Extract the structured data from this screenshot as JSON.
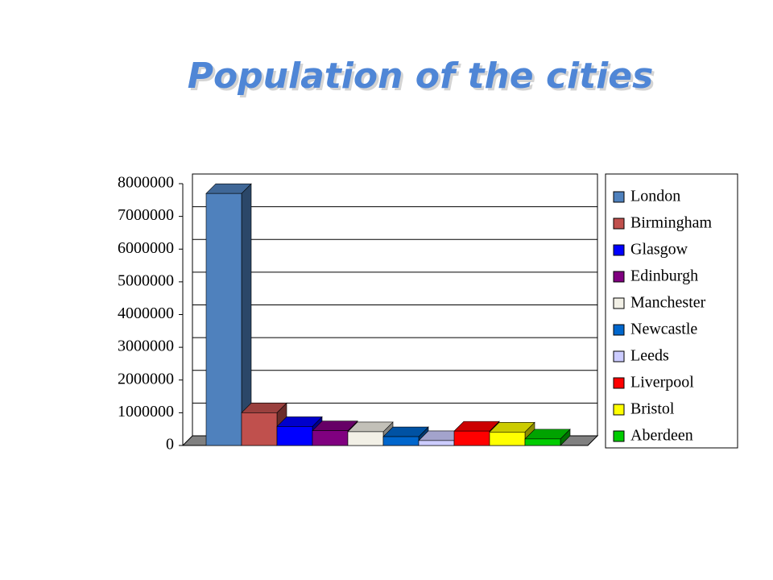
{
  "chart_data": {
    "type": "bar3d",
    "title": "Population of the cities",
    "categories": [
      null
    ],
    "series": [
      {
        "name": "London",
        "color": "#4f81bd",
        "values": [
          7700000
        ]
      },
      {
        "name": "Birmingham",
        "color": "#c0504d",
        "values": [
          1000000
        ]
      },
      {
        "name": "Glasgow",
        "color": "#0000ff",
        "values": [
          580000
        ]
      },
      {
        "name": "Edinburgh",
        "color": "#800080",
        "values": [
          450000
        ]
      },
      {
        "name": "Manchester",
        "color": "#f2f0e6",
        "values": [
          420000
        ]
      },
      {
        "name": "Newcastle",
        "color": "#0066cc",
        "values": [
          270000
        ]
      },
      {
        "name": "Leeds",
        "color": "#ccccff",
        "values": [
          150000
        ]
      },
      {
        "name": "Liverpool",
        "color": "#ff0000",
        "values": [
          440000
        ]
      },
      {
        "name": "Bristol",
        "color": "#ffff00",
        "values": [
          410000
        ]
      },
      {
        "name": "Aberdeen",
        "color": "#00cc00",
        "values": [
          200000
        ]
      }
    ],
    "ylim": [
      0,
      8000000
    ],
    "yticks": [
      0,
      1000000,
      2000000,
      3000000,
      4000000,
      5000000,
      6000000,
      7000000,
      8000000
    ],
    "grid": true,
    "legend": "right"
  }
}
